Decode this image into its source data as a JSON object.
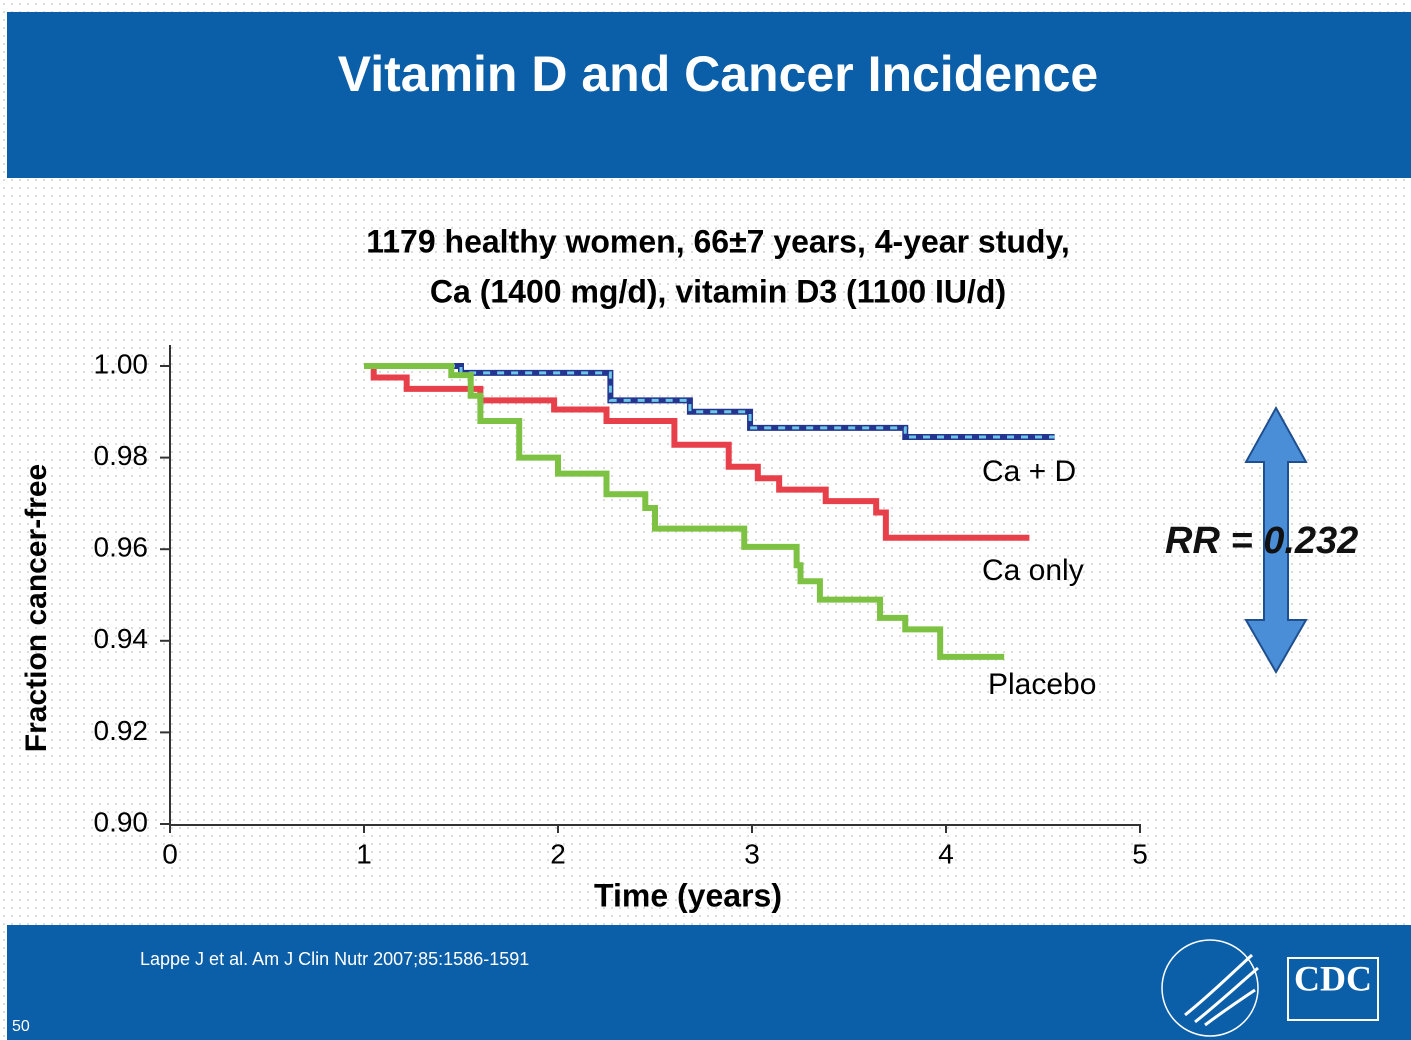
{
  "header": {
    "title": "Vitamin D and Cancer Incidence"
  },
  "chart_data": {
    "type": "step",
    "subtitle": [
      "1179 healthy women, 66±7 years, 4-year study,",
      "Ca (1400 mg/d), vitamin D3 (1100 IU/d)"
    ],
    "x_label": "Time (years)",
    "y_label": "Fraction cancer-free",
    "xlim": [
      0,
      5
    ],
    "xticks": [
      0,
      1,
      2,
      3,
      4,
      5
    ],
    "ylim": [
      0.9,
      1.0
    ],
    "yticks": [
      {
        "value": 0.9,
        "label": "0.90"
      },
      {
        "value": 0.92,
        "label": "0.92"
      },
      {
        "value": 0.94,
        "label": "0.94"
      },
      {
        "value": 0.96,
        "label": "0.96"
      },
      {
        "value": 0.98,
        "label": "0.98"
      },
      {
        "value": 1.0,
        "label": "1.00"
      }
    ],
    "series": [
      {
        "name": "Ca + D",
        "color": "#23358f",
        "dash_color": "#6ec6e6",
        "x": [
          1,
          1.5,
          2.27,
          2.68,
          2.99,
          3.79,
          4.56
        ],
        "values": [
          1.0,
          0.9985,
          0.9925,
          0.99,
          0.9865,
          0.9845,
          0.9845
        ]
      },
      {
        "name": "Ca only",
        "color": "#e8404a",
        "x": [
          1,
          1.05,
          1.22,
          1.6,
          1.98,
          2.25,
          2.6,
          2.88,
          3.03,
          3.14,
          3.38,
          3.64,
          3.69,
          4.43
        ],
        "values": [
          1.0,
          0.9975,
          0.995,
          0.9925,
          0.9905,
          0.988,
          0.9828,
          0.978,
          0.9755,
          0.973,
          0.9705,
          0.968,
          0.9625,
          0.9625
        ]
      },
      {
        "name": "Placebo",
        "color": "#7dc242",
        "x": [
          1,
          1.45,
          1.55,
          1.6,
          1.8,
          2.0,
          2.25,
          2.45,
          2.5,
          2.96,
          3.23,
          3.25,
          3.35,
          3.66,
          3.79,
          3.97,
          4.3
        ],
        "values": [
          1.0,
          0.998,
          0.9935,
          0.988,
          0.98,
          0.9765,
          0.972,
          0.969,
          0.9645,
          0.9605,
          0.9565,
          0.953,
          0.949,
          0.945,
          0.9425,
          0.9365,
          0.9365
        ]
      }
    ],
    "annotation": "RR = 0.232"
  },
  "footer": {
    "citation": "Lappe J et al. Am J Clin Nutr 2007;85:1586-1591",
    "page": "50",
    "logo": "CDC"
  }
}
